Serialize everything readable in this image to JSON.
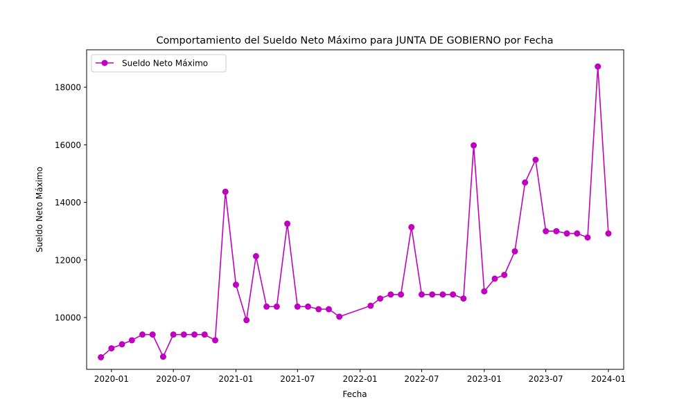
{
  "chart_data": {
    "type": "line",
    "title": "Comportamiento del Sueldo Neto Máximo para JUNTA DE GOBIERNO por Fecha",
    "xlabel": "Fecha",
    "ylabel": "Sueldo Neto Máximo",
    "xlim": [
      "2019-10-20",
      "2024-02-15"
    ],
    "ylim": [
      8200,
      19300
    ],
    "grid": false,
    "legend_position": "top-left",
    "x_ticks": [
      "2020-01",
      "2020-07",
      "2021-01",
      "2021-07",
      "2022-01",
      "2022-07",
      "2023-01",
      "2023-07",
      "2024-01"
    ],
    "y_ticks": [
      10000,
      12000,
      14000,
      16000,
      18000
    ],
    "series": [
      {
        "name": "Sueldo Neto Máximo",
        "color": "#bf00bf",
        "marker": "circle",
        "x": [
          "2019-12-01",
          "2020-01-01",
          "2020-02-01",
          "2020-03-01",
          "2020-04-01",
          "2020-05-01",
          "2020-06-01",
          "2020-07-01",
          "2020-08-01",
          "2020-09-01",
          "2020-10-01",
          "2020-11-01",
          "2020-12-01",
          "2021-01-01",
          "2021-02-01",
          "2021-03-01",
          "2021-04-01",
          "2021-05-01",
          "2021-06-01",
          "2021-07-01",
          "2021-08-01",
          "2021-09-01",
          "2021-10-01",
          "2021-11-01",
          "2022-02-01",
          "2022-03-01",
          "2022-04-01",
          "2022-05-01",
          "2022-06-01",
          "2022-07-01",
          "2022-08-01",
          "2022-09-01",
          "2022-10-01",
          "2022-11-01",
          "2022-12-01",
          "2023-01-01",
          "2023-02-01",
          "2023-03-01",
          "2023-04-01",
          "2023-05-01",
          "2023-06-01",
          "2023-07-01",
          "2023-08-01",
          "2023-09-01",
          "2023-10-01",
          "2023-11-01",
          "2023-12-01",
          "2024-01-01"
        ],
        "values": [
          8620,
          8930,
          9070,
          9210,
          9410,
          9410,
          8640,
          9410,
          9410,
          9410,
          9410,
          9210,
          14370,
          11140,
          9910,
          12130,
          10380,
          10380,
          13260,
          10380,
          10380,
          10290,
          10290,
          10030,
          10410,
          10660,
          10800,
          10800,
          13140,
          10800,
          10800,
          10800,
          10800,
          10660,
          15980,
          10910,
          11350,
          11480,
          12300,
          14690,
          15480,
          13000,
          13000,
          12920,
          12920,
          12780,
          18720,
          12920
        ]
      }
    ]
  }
}
